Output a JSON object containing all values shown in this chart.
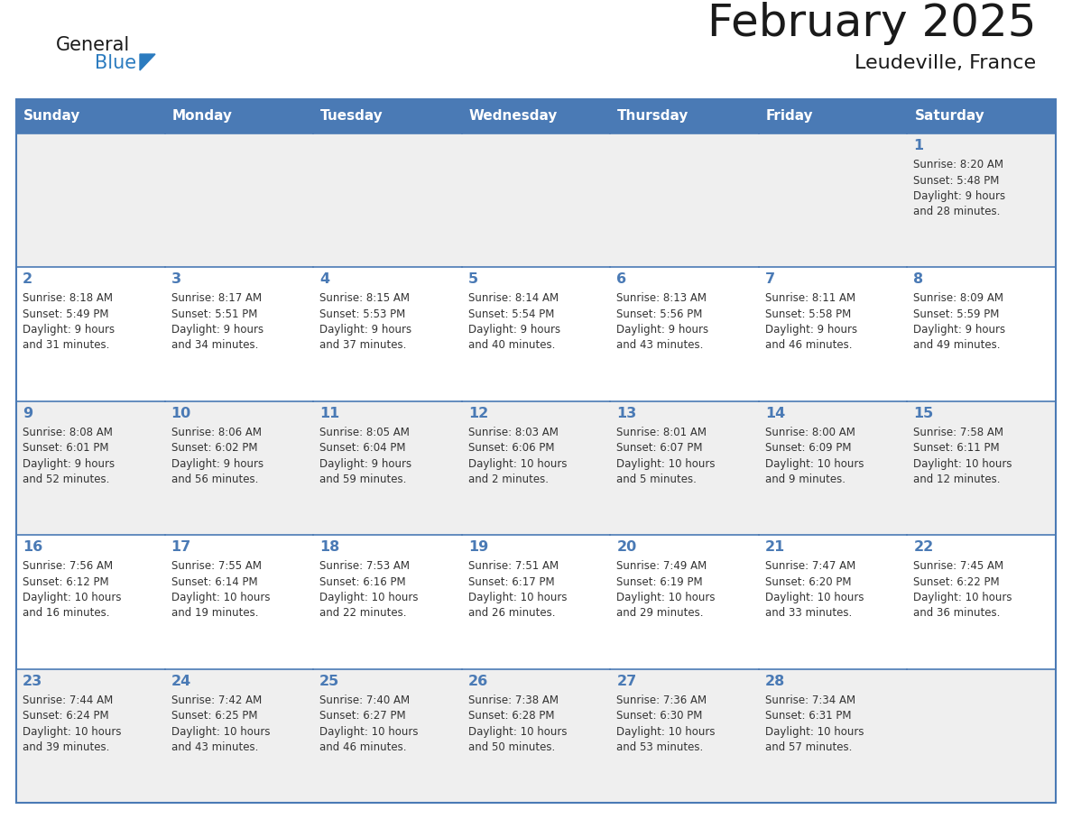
{
  "title": "February 2025",
  "subtitle": "Leudeville, France",
  "days_of_week": [
    "Sunday",
    "Monday",
    "Tuesday",
    "Wednesday",
    "Thursday",
    "Friday",
    "Saturday"
  ],
  "header_bg": "#4a7ab5",
  "header_text": "#ffffff",
  "row_bg_odd": "#efefef",
  "row_bg_even": "#ffffff",
  "cell_border_color": "#4a7ab5",
  "day_number_color": "#4a7ab5",
  "text_color": "#333333",
  "logo_general_color": "#1a1a1a",
  "logo_blue_color": "#2b7bbf",
  "title_color": "#1a1a1a",
  "calendar_data": [
    [
      {
        "day": "",
        "sunrise": "",
        "sunset": "",
        "daylight": ""
      },
      {
        "day": "",
        "sunrise": "",
        "sunset": "",
        "daylight": ""
      },
      {
        "day": "",
        "sunrise": "",
        "sunset": "",
        "daylight": ""
      },
      {
        "day": "",
        "sunrise": "",
        "sunset": "",
        "daylight": ""
      },
      {
        "day": "",
        "sunrise": "",
        "sunset": "",
        "daylight": ""
      },
      {
        "day": "",
        "sunrise": "",
        "sunset": "",
        "daylight": ""
      },
      {
        "day": "1",
        "sunrise": "8:20 AM",
        "sunset": "5:48 PM",
        "daylight": "9 hours\nand 28 minutes."
      }
    ],
    [
      {
        "day": "2",
        "sunrise": "8:18 AM",
        "sunset": "5:49 PM",
        "daylight": "9 hours\nand 31 minutes."
      },
      {
        "day": "3",
        "sunrise": "8:17 AM",
        "sunset": "5:51 PM",
        "daylight": "9 hours\nand 34 minutes."
      },
      {
        "day": "4",
        "sunrise": "8:15 AM",
        "sunset": "5:53 PM",
        "daylight": "9 hours\nand 37 minutes."
      },
      {
        "day": "5",
        "sunrise": "8:14 AM",
        "sunset": "5:54 PM",
        "daylight": "9 hours\nand 40 minutes."
      },
      {
        "day": "6",
        "sunrise": "8:13 AM",
        "sunset": "5:56 PM",
        "daylight": "9 hours\nand 43 minutes."
      },
      {
        "day": "7",
        "sunrise": "8:11 AM",
        "sunset": "5:58 PM",
        "daylight": "9 hours\nand 46 minutes."
      },
      {
        "day": "8",
        "sunrise": "8:09 AM",
        "sunset": "5:59 PM",
        "daylight": "9 hours\nand 49 minutes."
      }
    ],
    [
      {
        "day": "9",
        "sunrise": "8:08 AM",
        "sunset": "6:01 PM",
        "daylight": "9 hours\nand 52 minutes."
      },
      {
        "day": "10",
        "sunrise": "8:06 AM",
        "sunset": "6:02 PM",
        "daylight": "9 hours\nand 56 minutes."
      },
      {
        "day": "11",
        "sunrise": "8:05 AM",
        "sunset": "6:04 PM",
        "daylight": "9 hours\nand 59 minutes."
      },
      {
        "day": "12",
        "sunrise": "8:03 AM",
        "sunset": "6:06 PM",
        "daylight": "10 hours\nand 2 minutes."
      },
      {
        "day": "13",
        "sunrise": "8:01 AM",
        "sunset": "6:07 PM",
        "daylight": "10 hours\nand 5 minutes."
      },
      {
        "day": "14",
        "sunrise": "8:00 AM",
        "sunset": "6:09 PM",
        "daylight": "10 hours\nand 9 minutes."
      },
      {
        "day": "15",
        "sunrise": "7:58 AM",
        "sunset": "6:11 PM",
        "daylight": "10 hours\nand 12 minutes."
      }
    ],
    [
      {
        "day": "16",
        "sunrise": "7:56 AM",
        "sunset": "6:12 PM",
        "daylight": "10 hours\nand 16 minutes."
      },
      {
        "day": "17",
        "sunrise": "7:55 AM",
        "sunset": "6:14 PM",
        "daylight": "10 hours\nand 19 minutes."
      },
      {
        "day": "18",
        "sunrise": "7:53 AM",
        "sunset": "6:16 PM",
        "daylight": "10 hours\nand 22 minutes."
      },
      {
        "day": "19",
        "sunrise": "7:51 AM",
        "sunset": "6:17 PM",
        "daylight": "10 hours\nand 26 minutes."
      },
      {
        "day": "20",
        "sunrise": "7:49 AM",
        "sunset": "6:19 PM",
        "daylight": "10 hours\nand 29 minutes."
      },
      {
        "day": "21",
        "sunrise": "7:47 AM",
        "sunset": "6:20 PM",
        "daylight": "10 hours\nand 33 minutes."
      },
      {
        "day": "22",
        "sunrise": "7:45 AM",
        "sunset": "6:22 PM",
        "daylight": "10 hours\nand 36 minutes."
      }
    ],
    [
      {
        "day": "23",
        "sunrise": "7:44 AM",
        "sunset": "6:24 PM",
        "daylight": "10 hours\nand 39 minutes."
      },
      {
        "day": "24",
        "sunrise": "7:42 AM",
        "sunset": "6:25 PM",
        "daylight": "10 hours\nand 43 minutes."
      },
      {
        "day": "25",
        "sunrise": "7:40 AM",
        "sunset": "6:27 PM",
        "daylight": "10 hours\nand 46 minutes."
      },
      {
        "day": "26",
        "sunrise": "7:38 AM",
        "sunset": "6:28 PM",
        "daylight": "10 hours\nand 50 minutes."
      },
      {
        "day": "27",
        "sunrise": "7:36 AM",
        "sunset": "6:30 PM",
        "daylight": "10 hours\nand 53 minutes."
      },
      {
        "day": "28",
        "sunrise": "7:34 AM",
        "sunset": "6:31 PM",
        "daylight": "10 hours\nand 57 minutes."
      },
      {
        "day": "",
        "sunrise": "",
        "sunset": "",
        "daylight": ""
      }
    ]
  ]
}
